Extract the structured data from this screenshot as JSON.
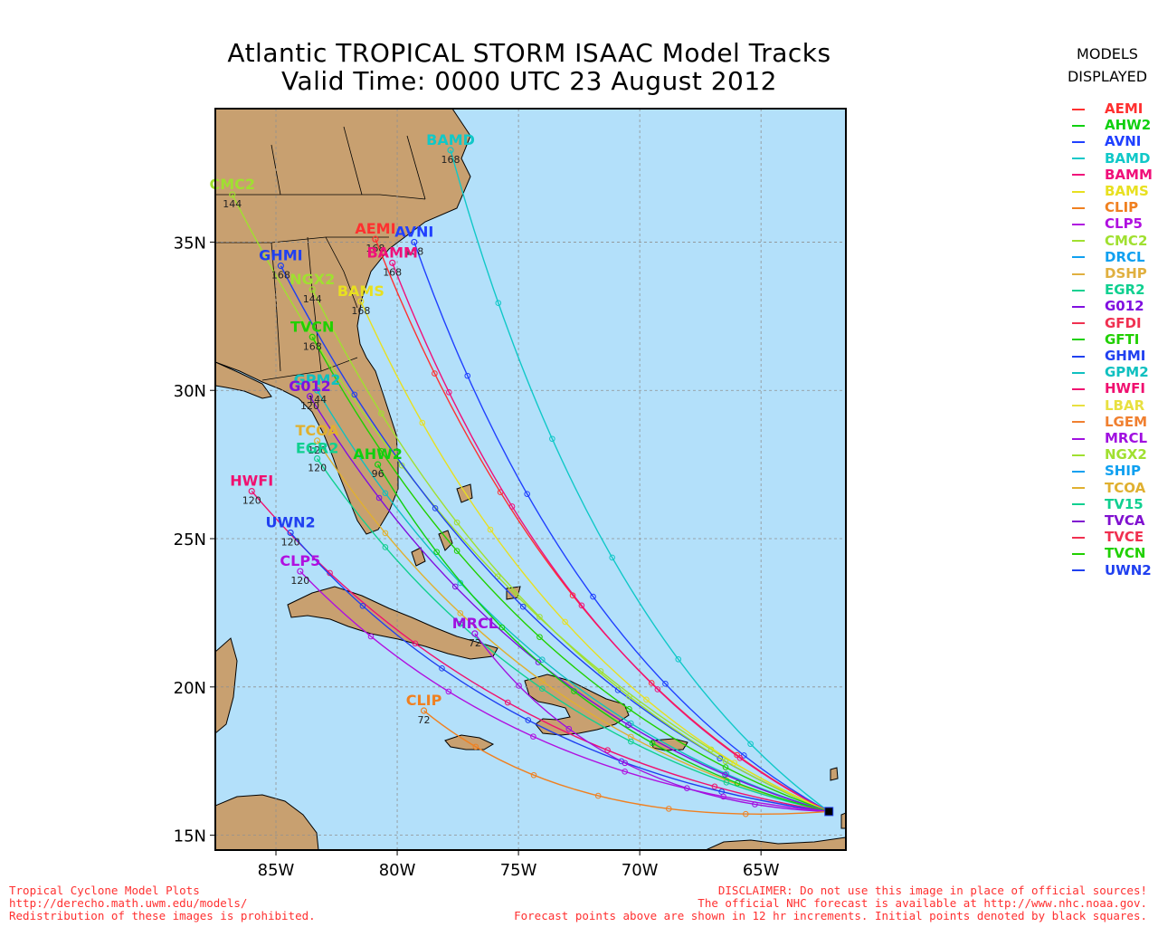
{
  "title_line1": "Atlantic TROPICAL STORM ISAAC Model Tracks",
  "title_line2": "Valid Time: 0000 UTC 23 August 2012",
  "legend": {
    "heading1": "MODELS",
    "heading2": "DISPLAYED",
    "items": [
      {
        "name": "AEMI",
        "color": "#ff3030"
      },
      {
        "name": "AHW2",
        "color": "#10d010"
      },
      {
        "name": "AVNI",
        "color": "#2040ff"
      },
      {
        "name": "BAMD",
        "color": "#10c8c8"
      },
      {
        "name": "BAMM",
        "color": "#f0107a"
      },
      {
        "name": "BAMS",
        "color": "#e8e020"
      },
      {
        "name": "CLIP",
        "color": "#f08020"
      },
      {
        "name": "CLP5",
        "color": "#b010e0"
      },
      {
        "name": "CMC2",
        "color": "#a0e030"
      },
      {
        "name": "DRCL",
        "color": "#10a0f0"
      },
      {
        "name": "DSHP",
        "color": "#e0b040"
      },
      {
        "name": "EGR2",
        "color": "#10d090"
      },
      {
        "name": "G012",
        "color": "#8010e0"
      },
      {
        "name": "GFDI",
        "color": "#f03050"
      },
      {
        "name": "GFTI",
        "color": "#20d000"
      },
      {
        "name": "GHMI",
        "color": "#2040f0"
      },
      {
        "name": "GPM2",
        "color": "#10c0c0"
      },
      {
        "name": "HWFI",
        "color": "#f01070"
      },
      {
        "name": "LBAR",
        "color": "#e8e040"
      },
      {
        "name": "LGEM",
        "color": "#f08030"
      },
      {
        "name": "MRCL",
        "color": "#a010e0"
      },
      {
        "name": "NGX2",
        "color": "#a0e030"
      },
      {
        "name": "SHIP",
        "color": "#10a0f0"
      },
      {
        "name": "TCOA",
        "color": "#e0b030"
      },
      {
        "name": "TV15",
        "color": "#10d090"
      },
      {
        "name": "TVCA",
        "color": "#8010d0"
      },
      {
        "name": "TVCE",
        "color": "#f03050"
      },
      {
        "name": "TVCN",
        "color": "#20d000"
      },
      {
        "name": "UWN2",
        "color": "#2040f0"
      }
    ]
  },
  "map": {
    "lon_range": [
      -87.5,
      -61.5
    ],
    "lat_range": [
      14.5,
      39.5
    ],
    "lon_ticks": [
      "85W",
      "80W",
      "75W",
      "70W",
      "65W"
    ],
    "lat_ticks": [
      "35N",
      "30N",
      "25N",
      "20N",
      "15N"
    ],
    "colors": {
      "ocean": "#b3e0fa",
      "land": "#c8a070",
      "border": "#000000",
      "grid": "#909090"
    },
    "initial_position": {
      "lon": -62.2,
      "lat": 15.8
    },
    "track_labels": [
      {
        "name": "BAMD",
        "lon": -77.8,
        "lat": 38.1,
        "color": "#10c8c8",
        "hour": "168"
      },
      {
        "name": "CMC2",
        "lon": -86.8,
        "lat": 36.6,
        "color": "#a0e030",
        "hour": "144"
      },
      {
        "name": "AEMI",
        "lon": -80.9,
        "lat": 35.1,
        "color": "#ff3030",
        "hour": "168"
      },
      {
        "name": "AVNI",
        "lon": -79.3,
        "lat": 35.0,
        "color": "#2040ff",
        "hour": "168"
      },
      {
        "name": "GHMI",
        "lon": -84.8,
        "lat": 34.2,
        "color": "#2040f0",
        "hour": "168"
      },
      {
        "name": "BAMM",
        "lon": -80.2,
        "lat": 34.3,
        "color": "#f0107a",
        "hour": "168"
      },
      {
        "name": "NGX2",
        "lon": -83.5,
        "lat": 33.4,
        "color": "#a0e030",
        "hour": "144"
      },
      {
        "name": "BAMS",
        "lon": -81.5,
        "lat": 33.0,
        "color": "#e8e020",
        "hour": "168"
      },
      {
        "name": "TVCN",
        "lon": -83.5,
        "lat": 31.8,
        "color": "#20d000",
        "hour": "168"
      },
      {
        "name": "GPM2",
        "lon": -83.3,
        "lat": 30.0,
        "color": "#10c0c0",
        "hour": "144"
      },
      {
        "name": "G012",
        "lon": -83.6,
        "lat": 29.8,
        "color": "#8010e0",
        "hour": "120"
      },
      {
        "name": "TCOA",
        "lon": -83.3,
        "lat": 28.3,
        "color": "#e0b030",
        "hour": "120"
      },
      {
        "name": "EGR2",
        "lon": -83.3,
        "lat": 27.7,
        "color": "#10d090",
        "hour": "120"
      },
      {
        "name": "AHW2",
        "lon": -80.8,
        "lat": 27.5,
        "color": "#10d010",
        "hour": "96"
      },
      {
        "name": "HWFI",
        "lon": -86.0,
        "lat": 26.6,
        "color": "#f01070",
        "hour": "120"
      },
      {
        "name": "UWN2",
        "lon": -84.4,
        "lat": 25.2,
        "color": "#2040f0",
        "hour": "120"
      },
      {
        "name": "CLP5",
        "lon": -84.0,
        "lat": 23.9,
        "color": "#b010e0",
        "hour": "120"
      },
      {
        "name": "MRCL",
        "lon": -76.8,
        "lat": 21.8,
        "color": "#a010e0",
        "hour": "72"
      },
      {
        "name": "CLIP",
        "lon": -78.9,
        "lat": 19.2,
        "color": "#f08020",
        "hour": "72"
      }
    ]
  },
  "footer": {
    "left1": "Tropical Cyclone Model Plots",
    "left2": "http://derecho.math.uwm.edu/models/",
    "left3": "Redistribution of these images is prohibited.",
    "right1": "DISCLAIMER: Do not use this image in place of official sources!",
    "right2": "The official NHC forecast is available at http://www.nhc.noaa.gov.",
    "right3": "Forecast points above are shown in 12 hr increments. Initial points denoted by black squares."
  }
}
